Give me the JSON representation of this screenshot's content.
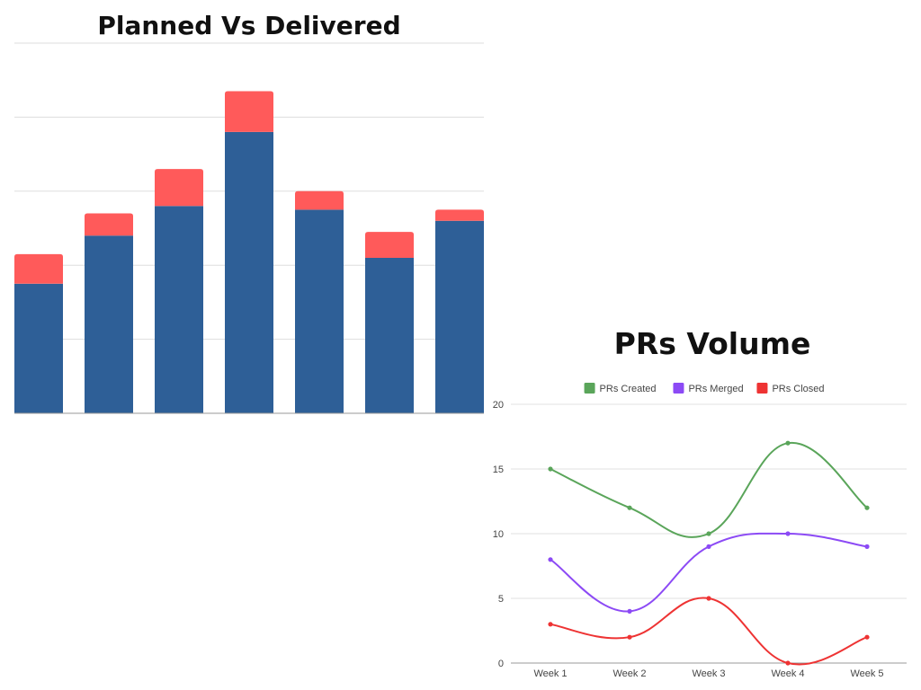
{
  "chart_data": [
    {
      "type": "bar",
      "stacked": true,
      "title": "Planned Vs Delivered",
      "categories": [
        "",
        "",
        "",
        "",
        "",
        "",
        ""
      ],
      "series": [
        {
          "values": [
            17.5,
            24,
            28,
            38,
            27.5,
            21,
            26
          ],
          "color": "#2e5f97"
        },
        {
          "values": [
            4,
            3,
            5,
            5.5,
            2.5,
            3.5,
            1.5
          ],
          "color": "#ff5a5a"
        }
      ],
      "ylim": [
        0,
        50
      ],
      "grid": true,
      "legend": "none"
    },
    {
      "type": "line",
      "smooth": true,
      "title": "PRs Volume",
      "x": [
        "Week 1",
        "Week 2",
        "Week 3",
        "Week 4",
        "Week 5"
      ],
      "series": [
        {
          "name": "PRs Created",
          "values": [
            15,
            12,
            10,
            17,
            12
          ],
          "color": "#5aa55a"
        },
        {
          "name": "PRs Merged",
          "values": [
            8,
            4,
            9,
            10,
            9
          ],
          "color": "#8c4af5"
        },
        {
          "name": "PRs Closed",
          "values": [
            3,
            2,
            5,
            0,
            2
          ],
          "color": "#ee3333"
        }
      ],
      "ylim": [
        0,
        20
      ],
      "yticks": [
        0,
        5,
        10,
        15,
        20
      ],
      "grid": true,
      "legend": "top"
    }
  ]
}
